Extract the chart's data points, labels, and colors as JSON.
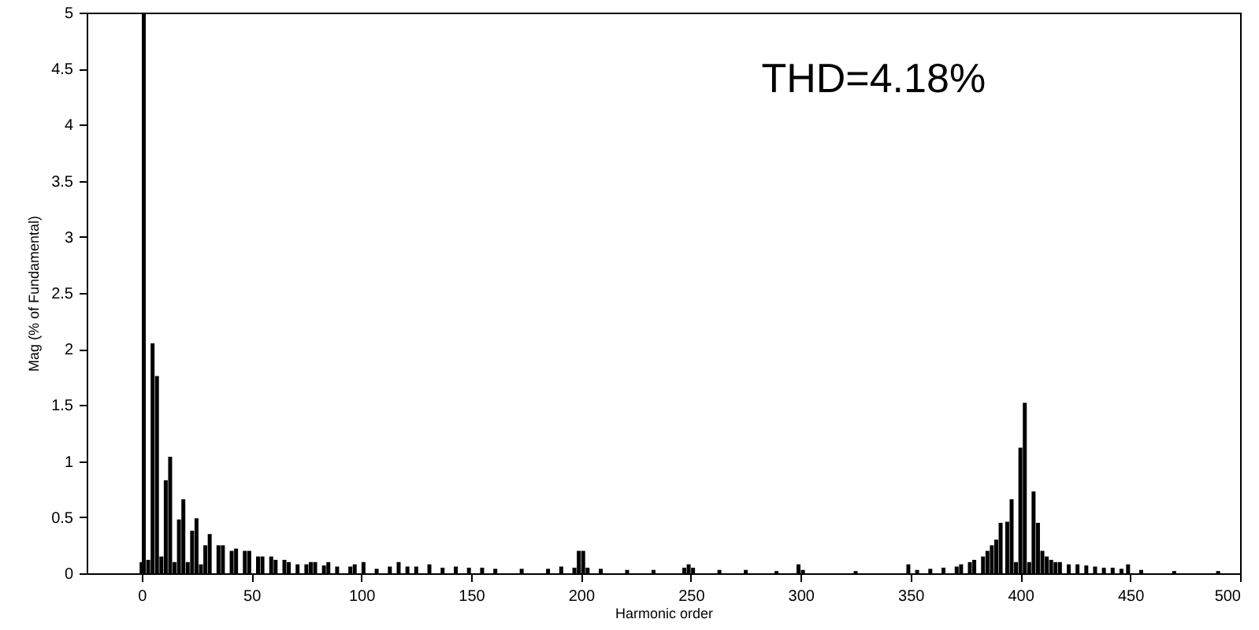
{
  "chart_data": {
    "type": "bar",
    "xlabel": "Harmonic order",
    "ylabel": "Mag (% of Fundamental)",
    "annotations": [
      "THD=4.18%"
    ],
    "x": [
      0,
      1,
      3,
      5,
      7,
      9,
      11,
      13,
      15,
      17,
      19,
      21,
      23,
      25,
      27,
      29,
      31,
      35,
      37,
      41,
      43,
      47,
      49,
      53,
      55,
      59,
      61,
      65,
      67,
      71,
      75,
      77,
      79,
      83,
      85,
      89,
      95,
      97,
      101,
      107,
      113,
      117,
      121,
      125,
      131,
      137,
      143,
      149,
      155,
      161,
      173,
      185,
      191,
      197,
      199,
      201,
      203,
      209,
      221,
      233,
      247,
      249,
      251,
      263,
      275,
      289,
      299,
      301,
      325,
      349,
      353,
      359,
      365,
      371,
      373,
      377,
      379,
      383,
      385,
      387,
      389,
      391,
      394,
      396,
      398,
      400,
      402,
      404,
      406,
      408,
      410,
      412,
      414,
      416,
      418,
      422,
      426,
      430,
      434,
      438,
      442,
      446,
      449,
      455,
      470,
      490
    ],
    "values": [
      0.1,
      5,
      0.12,
      2.05,
      1.76,
      0.15,
      0.83,
      1.04,
      0.1,
      0.48,
      0.66,
      0.1,
      0.38,
      0.49,
      0.08,
      0.25,
      0.35,
      0.25,
      0.25,
      0.2,
      0.22,
      0.2,
      0.2,
      0.15,
      0.15,
      0.15,
      0.12,
      0.12,
      0.1,
      0.08,
      0.08,
      0.1,
      0.1,
      0.07,
      0.1,
      0.06,
      0.06,
      0.08,
      0.1,
      0.04,
      0.06,
      0.1,
      0.06,
      0.06,
      0.08,
      0.05,
      0.06,
      0.05,
      0.05,
      0.04,
      0.04,
      0.04,
      0.06,
      0.05,
      0.2,
      0.2,
      0.05,
      0.04,
      0.03,
      0.03,
      0.05,
      0.08,
      0.05,
      0.03,
      0.03,
      0.02,
      0.08,
      0.03,
      0.02,
      0.08,
      0.03,
      0.04,
      0.05,
      0.06,
      0.08,
      0.1,
      0.12,
      0.15,
      0.2,
      0.25,
      0.3,
      0.45,
      0.46,
      0.66,
      0.1,
      1.12,
      1.52,
      0.1,
      0.73,
      0.45,
      0.2,
      0.15,
      0.12,
      0.1,
      0.1,
      0.08,
      0.08,
      0.07,
      0.06,
      0.05,
      0.05,
      0.04,
      0.08,
      0.03,
      0.02,
      0.02
    ],
    "color": "#000000",
    "xlim": [
      -25,
      500
    ],
    "xticks": [
      0,
      50,
      100,
      150,
      200,
      250,
      300,
      350,
      400,
      450,
      500
    ],
    "ylim": [
      0,
      5
    ],
    "yticks": [
      0,
      0.5,
      1,
      1.5,
      2,
      2.5,
      3,
      3.5,
      4,
      4.5,
      5
    ],
    "grid": false
  }
}
